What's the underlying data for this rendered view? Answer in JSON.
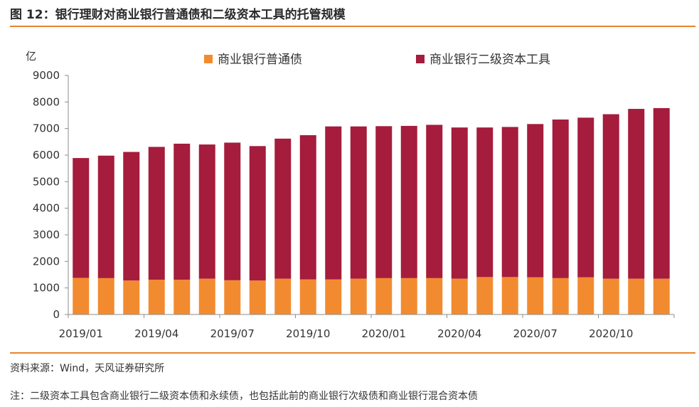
{
  "figure": {
    "title": "图 12：银行理财对商业银行普通债和二级资本工具的托管规模",
    "source": "资料来源：Wind，天风证券研究所",
    "note": "注：二级资本工具包含商业银行二级资本债和永续债，也包括此前的商业银行次级债和商业银行混合资本债"
  },
  "colors": {
    "accent": "#e8852e",
    "series1": "#f28b30",
    "series2": "#a51c3c"
  },
  "chart_data": {
    "type": "bar",
    "stacked": true,
    "y_unit_label": "亿",
    "ylim": [
      0,
      9000
    ],
    "y_ticks": [
      0,
      1000,
      2000,
      3000,
      4000,
      5000,
      6000,
      7000,
      8000,
      9000
    ],
    "categories": [
      "2019/01",
      "2019/02",
      "2019/03",
      "2019/04",
      "2019/05",
      "2019/06",
      "2019/07",
      "2019/08",
      "2019/09",
      "2019/10",
      "2019/11",
      "2019/12",
      "2020/01",
      "2020/02",
      "2020/03",
      "2020/04",
      "2020/05",
      "2020/06",
      "2020/07",
      "2020/08",
      "2020/09",
      "2020/10",
      "2020/11",
      "2020/12"
    ],
    "x_tick_labels": [
      "2019/01",
      "2019/04",
      "2019/07",
      "2019/10",
      "2020/01",
      "2020/04",
      "2020/07",
      "2020/10"
    ],
    "x_tick_every": 3,
    "series": [
      {
        "name": "商业银行普通债",
        "color": "#f28b30",
        "values": [
          1380,
          1370,
          1280,
          1310,
          1310,
          1350,
          1290,
          1280,
          1350,
          1320,
          1320,
          1350,
          1370,
          1370,
          1370,
          1350,
          1410,
          1410,
          1400,
          1370,
          1400,
          1350,
          1350,
          1350
        ]
      },
      {
        "name": "商业银行二级资本工具",
        "color": "#a51c3c",
        "values": [
          4510,
          4610,
          4840,
          5000,
          5120,
          5050,
          5180,
          5060,
          5270,
          5430,
          5760,
          5730,
          5720,
          5730,
          5770,
          5690,
          5630,
          5650,
          5770,
          5970,
          6010,
          6190,
          6390,
          6420
        ]
      }
    ],
    "legend_position": "top",
    "grid": false
  }
}
